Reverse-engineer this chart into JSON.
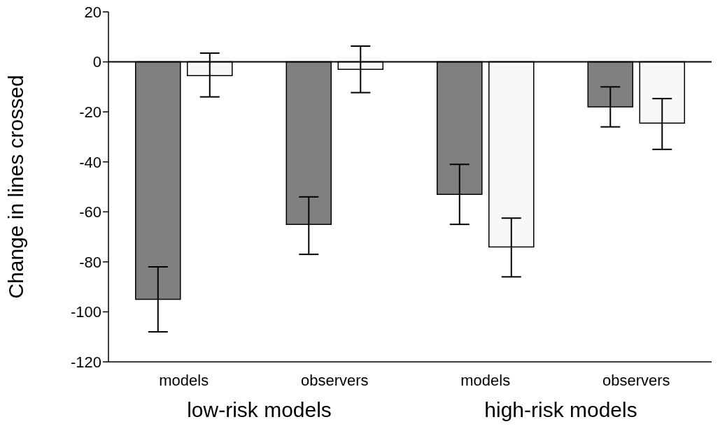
{
  "chart_data": {
    "type": "bar",
    "ylabel": "Change in lines crossed",
    "categories": [
      "models",
      "observers",
      "models",
      "observers"
    ],
    "series": [
      {
        "color": "#808080",
        "values": [
          -95,
          -65,
          -53,
          -18
        ],
        "errors": [
          [
            -108,
            -82
          ],
          [
            -77,
            -54
          ],
          [
            -65,
            -41
          ],
          [
            -26,
            -10
          ]
        ]
      },
      {
        "color": "#f8f8f8",
        "values": [
          -5.5,
          -3,
          -74,
          -24.5
        ],
        "errors": [
          [
            -14,
            3.5
          ],
          [
            -12.3,
            6.3
          ],
          [
            -86,
            -62.5
          ],
          [
            -35,
            -14.7
          ]
        ]
      }
    ],
    "ylim": [
      -120,
      20
    ],
    "yticks": [
      -120,
      -100,
      -80,
      -60,
      -40,
      -20,
      0,
      20
    ],
    "ref_lines": [
      {
        "axis": "y",
        "value": 0
      }
    ],
    "annotations": [
      "low-risk models",
      "high-risk models"
    ],
    "grid": false,
    "legend": false
  }
}
